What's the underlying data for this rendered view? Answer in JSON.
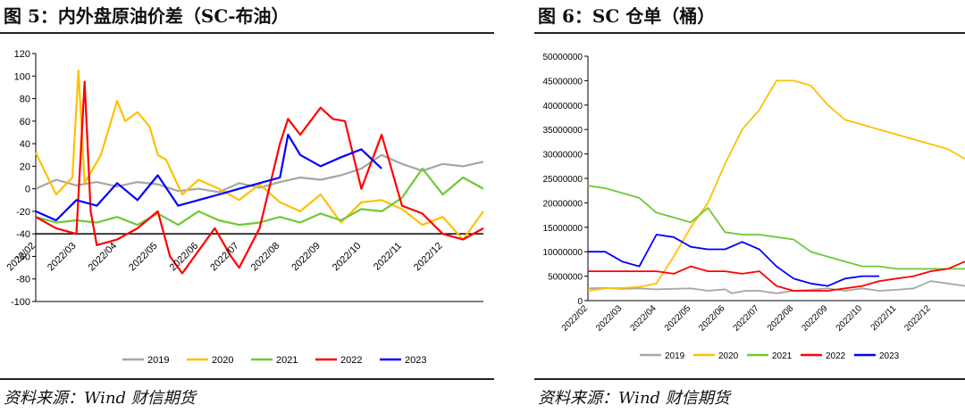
{
  "left": {
    "title": "图 5：内外盘原油价差（SC-布油）",
    "source": "资料来源：Wind 财信期货"
  },
  "right": {
    "title": "图 6：SC 仓单（桶）",
    "source": "资料来源：Wind 财信期货"
  },
  "colors": {
    "2019": "#a6a6a6",
    "2020": "#ffc000",
    "2021": "#70c835",
    "2022": "#ff0000",
    "2023": "#0000ff"
  },
  "chart_data": [
    {
      "type": "line",
      "title": "",
      "xlabel": "",
      "ylabel": "",
      "ylim": [
        -100,
        120
      ],
      "yticks": [
        120,
        100,
        80,
        60,
        40,
        20,
        0,
        -20,
        -40,
        -60,
        -80,
        -100
      ],
      "x_tick_labels": [
        "2022/02",
        "2022/03",
        "2022/04",
        "2022/05",
        "2022/06",
        "2022/07",
        "2022/08",
        "2022/09",
        "2022/10",
        "2022/11",
        "2022/12"
      ],
      "x_month_range": [
        0,
        11
      ],
      "reference_line": -40,
      "legend_position": "bottom",
      "series": [
        {
          "name": "2019",
          "x": [
            0,
            0.5,
            1,
            1.5,
            2,
            2.5,
            3,
            3.5,
            4,
            4.5,
            5,
            5.5,
            6,
            6.5,
            7,
            7.5,
            8,
            8.5,
            9,
            9.5,
            10,
            10.5,
            11
          ],
          "values": [
            0,
            8,
            3,
            6,
            2,
            6,
            4,
            -2,
            0,
            -3,
            5,
            1,
            6,
            10,
            8,
            12,
            18,
            30,
            22,
            16,
            22,
            20,
            24
          ]
        },
        {
          "name": "2020",
          "x": [
            0,
            0.5,
            0.9,
            1.05,
            1.2,
            1.6,
            2,
            2.2,
            2.5,
            2.8,
            3,
            3.2,
            3.6,
            4,
            4.5,
            5,
            5.5,
            6,
            6.5,
            7,
            7.5,
            8,
            8.5,
            9,
            9.5,
            10,
            10.5,
            11
          ],
          "values": [
            32,
            -5,
            10,
            105,
            5,
            30,
            78,
            60,
            68,
            55,
            30,
            26,
            -5,
            8,
            0,
            -10,
            4,
            -12,
            -20,
            -5,
            -30,
            -12,
            -10,
            -18,
            -32,
            -25,
            -45,
            -20
          ]
        },
        {
          "name": "2021",
          "x": [
            0,
            0.5,
            1,
            1.5,
            2,
            2.5,
            3,
            3.5,
            4,
            4.5,
            5,
            5.5,
            6,
            6.5,
            7,
            7.5,
            8,
            8.5,
            9,
            9.5,
            10,
            10.5,
            11
          ],
          "values": [
            -25,
            -30,
            -28,
            -30,
            -25,
            -32,
            -22,
            -32,
            -20,
            -28,
            -32,
            -30,
            -25,
            -30,
            -22,
            -28,
            -18,
            -20,
            -8,
            18,
            -5,
            10,
            0
          ]
        },
        {
          "name": "2022",
          "x": [
            0,
            0.5,
            1,
            1.2,
            1.35,
            1.5,
            2,
            2.5,
            3,
            3.3,
            3.6,
            4,
            4.4,
            4.8,
            5,
            5.5,
            6,
            6.2,
            6.5,
            7,
            7.3,
            7.6,
            8,
            8.5,
            9,
            9.5,
            10,
            10.5,
            11
          ],
          "values": [
            -25,
            -35,
            -40,
            95,
            -20,
            -50,
            -45,
            -35,
            -20,
            -60,
            -75,
            -55,
            -35,
            -60,
            -70,
            -35,
            40,
            62,
            48,
            72,
            62,
            60,
            0,
            48,
            -15,
            -22,
            -40,
            -45,
            -35
          ]
        },
        {
          "name": "2023",
          "x": [
            0,
            0.5,
            1,
            1.5,
            2,
            2.5,
            3,
            3.5,
            4,
            4.5,
            5,
            5.5,
            6,
            6.2,
            6.5,
            7,
            7.5,
            8,
            8.5
          ],
          "values": [
            -20,
            -28,
            -10,
            -15,
            5,
            -10,
            12,
            -15,
            -10,
            -5,
            0,
            5,
            10,
            48,
            30,
            20,
            28,
            35,
            18
          ]
        }
      ]
    },
    {
      "type": "line",
      "title": "",
      "xlabel": "",
      "ylabel": "",
      "ylim": [
        0,
        50000000
      ],
      "yticks": [
        50000000,
        45000000,
        40000000,
        35000000,
        30000000,
        25000000,
        20000000,
        15000000,
        10000000,
        5000000,
        0
      ],
      "ytick_labels": [
        "50000000",
        "45000000",
        "40000000",
        "35000000",
        "30000000",
        "25000000",
        "20000000",
        "15000000",
        "10000000",
        "5000000",
        "0"
      ],
      "x_tick_labels": [
        "2022/02",
        "2022/03",
        "2022/04",
        "2022/05",
        "2022/06",
        "2022/07",
        "2022/08",
        "2022/09",
        "2022/10",
        "2022/11",
        "2022/12"
      ],
      "x_month_range": [
        0,
        11
      ],
      "legend_position": "bottom",
      "series": [
        {
          "name": "2019",
          "x": [
            0,
            0.5,
            1,
            1.5,
            2,
            2.5,
            3,
            3.5,
            4,
            4.2,
            4.6,
            5,
            5.5,
            6,
            6.5,
            7,
            7.5,
            8,
            8.5,
            9,
            9.5,
            10,
            10.5,
            11
          ],
          "values": [
            2500000,
            2600000,
            2400000,
            2500000,
            2300000,
            2400000,
            2500000,
            2000000,
            2300000,
            1500000,
            2000000,
            2000000,
            1500000,
            2000000,
            2200000,
            2500000,
            2000000,
            2500000,
            2000000,
            2200000,
            2500000,
            4000000,
            3500000,
            3000000
          ]
        },
        {
          "name": "2020",
          "x": [
            0,
            0.5,
            1,
            1.5,
            2,
            2.5,
            3,
            3.5,
            4,
            4.5,
            5,
            5.5,
            6,
            6.5,
            7,
            7.5,
            8,
            8.5,
            9,
            9.5,
            10,
            10.5,
            11
          ],
          "values": [
            2000000,
            2500000,
            2600000,
            2800000,
            3500000,
            9000000,
            15000000,
            20000000,
            28000000,
            35000000,
            39000000,
            45000000,
            45000000,
            44000000,
            40000000,
            37000000,
            36000000,
            35000000,
            34000000,
            33000000,
            32000000,
            31000000,
            29000000
          ]
        },
        {
          "name": "2021",
          "x": [
            0,
            0.5,
            1,
            1.5,
            2,
            2.5,
            3,
            3.5,
            4,
            4.5,
            5,
            5.5,
            6,
            6.5,
            7,
            7.5,
            8,
            8.5,
            9,
            9.5,
            10,
            10.5,
            11
          ],
          "values": [
            23500000,
            23000000,
            22000000,
            21000000,
            18000000,
            17000000,
            16000000,
            19000000,
            14000000,
            13500000,
            13500000,
            13000000,
            12500000,
            10000000,
            9000000,
            8000000,
            7000000,
            7000000,
            6500000,
            6500000,
            6500000,
            6500000,
            6500000
          ]
        },
        {
          "name": "2022",
          "x": [
            0,
            0.5,
            1,
            1.5,
            2,
            2.5,
            3,
            3.5,
            4,
            4.5,
            5,
            5.5,
            6,
            6.5,
            7,
            7.5,
            8,
            8.5,
            9,
            9.5,
            10,
            10.5,
            11
          ],
          "values": [
            6000000,
            6000000,
            6000000,
            6000000,
            6000000,
            5500000,
            7000000,
            6000000,
            6000000,
            5500000,
            6000000,
            3000000,
            2000000,
            2000000,
            2000000,
            2500000,
            3000000,
            4000000,
            4500000,
            5000000,
            6000000,
            6500000,
            8000000
          ]
        },
        {
          "name": "2023",
          "x": [
            0,
            0.5,
            1,
            1.5,
            2,
            2.5,
            3,
            3.5,
            4,
            4.5,
            5,
            5.5,
            6,
            6.5,
            7,
            7.5,
            8,
            8.5
          ],
          "values": [
            10000000,
            10000000,
            8000000,
            7000000,
            13500000,
            13000000,
            11000000,
            10500000,
            10500000,
            12000000,
            10500000,
            7000000,
            4500000,
            3500000,
            3000000,
            4500000,
            5000000,
            5000000
          ]
        }
      ]
    }
  ]
}
